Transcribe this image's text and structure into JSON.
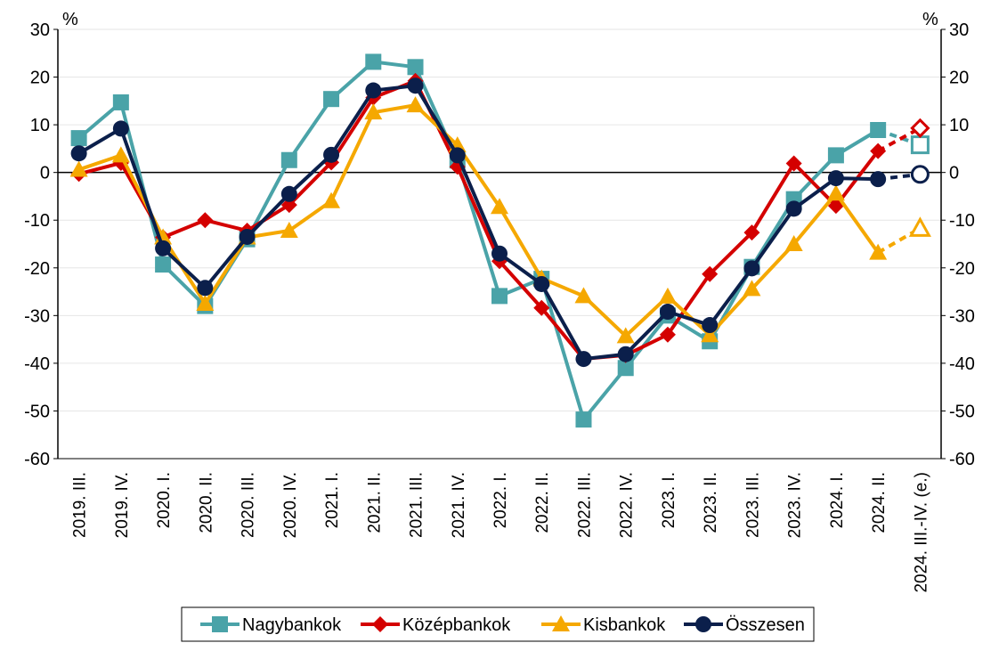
{
  "chart_data": {
    "type": "line",
    "y_unit_left": "%",
    "y_unit_right": "%",
    "ylim": [
      -60,
      30
    ],
    "yticks": [
      30,
      20,
      10,
      0,
      -10,
      -20,
      -30,
      -40,
      -50,
      -60
    ],
    "grid": true,
    "legend_position": "bottom",
    "categories": [
      "2019. III.",
      "2019. IV.",
      "2020. I.",
      "2020. II.",
      "2020. III.",
      "2020. IV.",
      "2021. I.",
      "2021. II.",
      "2021. III.",
      "2021. IV.",
      "2022. I.",
      "2022. II.",
      "2022. III.",
      "2022. IV.",
      "2023. I.",
      "2023. II.",
      "2023. III.",
      "2023. IV.",
      "2024. I.",
      "2024. II.",
      "2024. III.-IV. (e.)"
    ],
    "forecast_from_index": 19,
    "series": [
      {
        "name": "Nagybankok",
        "color": "#4aa3a8",
        "marker": "square",
        "values": [
          7.2,
          14.7,
          -19.3,
          -28.0,
          -14.0,
          2.6,
          15.4,
          23.2,
          22.1,
          2.5,
          -25.9,
          -22.3,
          -51.8,
          -41.0,
          -30.0,
          -35.4,
          -19.8,
          -5.6,
          3.6,
          8.9,
          5.8
        ]
      },
      {
        "name": "Középbankok",
        "color": "#d40000",
        "marker": "diamond",
        "values": [
          -0.3,
          2.0,
          -13.6,
          -10.0,
          -12.2,
          -6.8,
          2.1,
          15.7,
          19.2,
          1.2,
          -18.6,
          -28.4,
          -39.1,
          -38.3,
          -34.0,
          -21.3,
          -12.6,
          1.9,
          -7.0,
          4.5,
          9.3
        ]
      },
      {
        "name": "Kisbankok",
        "color": "#f5a800",
        "marker": "triangle",
        "values": [
          0.6,
          3.6,
          -13.6,
          -27.5,
          -13.6,
          -12.2,
          -6.0,
          12.6,
          14.1,
          5.7,
          -7.2,
          -22.2,
          -25.9,
          -34.3,
          -26.0,
          -34.1,
          -24.4,
          -15.0,
          -4.4,
          -16.8,
          -11.7
        ]
      },
      {
        "name": "Összesen",
        "color": "#0b1f4b",
        "marker": "circle",
        "values": [
          4.0,
          9.2,
          -15.9,
          -24.2,
          -13.5,
          -4.5,
          3.7,
          17.2,
          18.2,
          3.6,
          -17.0,
          -23.4,
          -39.1,
          -38.1,
          -29.2,
          -32.0,
          -20.1,
          -7.6,
          -1.2,
          -1.4,
          -0.4
        ]
      }
    ]
  }
}
